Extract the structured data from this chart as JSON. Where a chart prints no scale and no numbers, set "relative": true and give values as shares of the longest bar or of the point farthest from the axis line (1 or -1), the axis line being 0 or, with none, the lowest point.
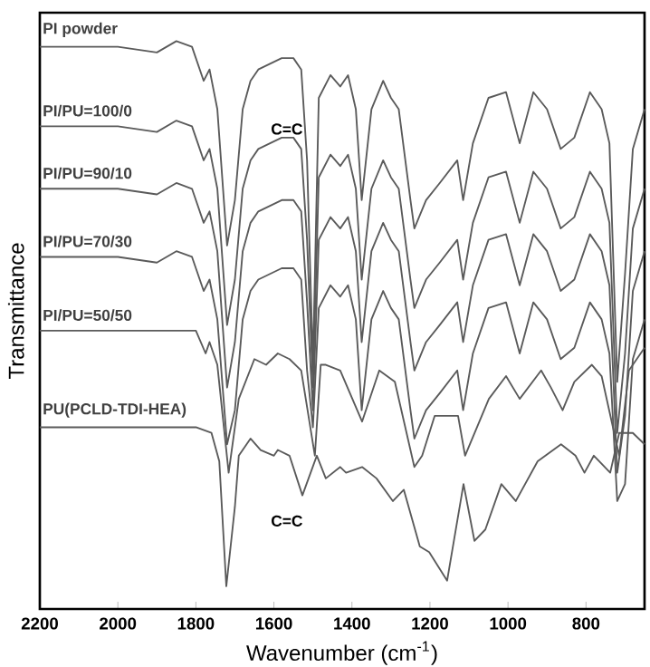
{
  "chart_data": {
    "type": "line",
    "relative": true,
    "xlabel": "Wavenumber (cm$^{-1}$)",
    "ylabel": "Transmittance",
    "xlim": [
      2200,
      650
    ],
    "xticks": [
      2200,
      2000,
      1800,
      1600,
      1400,
      1200,
      1000,
      800
    ],
    "grid": false,
    "marker": "none",
    "line_style": "solid",
    "x": [
      2200,
      2100,
      2000,
      1900,
      1850,
      1810,
      1795,
      1780,
      1765,
      1745,
      1720,
      1700,
      1680,
      1660,
      1640,
      1610,
      1580,
      1550,
      1530,
      1515,
      1500,
      1485,
      1455,
      1430,
      1410,
      1390,
      1375,
      1350,
      1320,
      1300,
      1280,
      1250,
      1240,
      1210,
      1175,
      1130,
      1115,
      1090,
      1050,
      1005,
      970,
      935,
      900,
      865,
      830,
      790,
      760,
      740,
      720,
      700,
      680,
      650
    ],
    "series": [
      {
        "name": "PI powder",
        "color": "#5a5a5a",
        "values": [
          0.99,
          0.99,
          0.99,
          0.98,
          1.0,
          0.99,
          0.96,
          0.93,
          0.95,
          0.88,
          0.64,
          0.72,
          0.88,
          0.93,
          0.95,
          0.96,
          0.97,
          0.97,
          0.95,
          0.79,
          0.43,
          0.9,
          0.94,
          0.92,
          0.94,
          0.88,
          0.72,
          0.88,
          0.93,
          0.9,
          0.88,
          0.72,
          0.67,
          0.72,
          0.75,
          0.79,
          0.72,
          0.82,
          0.9,
          0.91,
          0.82,
          0.91,
          0.88,
          0.81,
          0.83,
          0.91,
          0.88,
          0.82,
          0.4,
          0.59,
          0.81,
          0.88
        ]
      },
      {
        "name": "PI/PU=100/0",
        "color": "#5a5a5a",
        "values": [
          0.85,
          0.85,
          0.85,
          0.84,
          0.86,
          0.85,
          0.82,
          0.79,
          0.81,
          0.74,
          0.5,
          0.58,
          0.74,
          0.79,
          0.81,
          0.82,
          0.83,
          0.83,
          0.81,
          0.65,
          0.39,
          0.76,
          0.8,
          0.78,
          0.8,
          0.74,
          0.58,
          0.74,
          0.79,
          0.76,
          0.74,
          0.58,
          0.53,
          0.58,
          0.61,
          0.65,
          0.58,
          0.68,
          0.76,
          0.77,
          0.68,
          0.77,
          0.74,
          0.67,
          0.69,
          0.77,
          0.74,
          0.68,
          0.31,
          0.45,
          0.67,
          0.74
        ]
      },
      {
        "name": "PI/PU=90/10",
        "color": "#5a5a5a",
        "values": [
          0.74,
          0.74,
          0.74,
          0.73,
          0.75,
          0.74,
          0.71,
          0.68,
          0.7,
          0.63,
          0.39,
          0.47,
          0.63,
          0.68,
          0.7,
          0.71,
          0.72,
          0.72,
          0.7,
          0.54,
          0.35,
          0.65,
          0.69,
          0.67,
          0.69,
          0.63,
          0.47,
          0.63,
          0.68,
          0.65,
          0.63,
          0.47,
          0.42,
          0.47,
          0.5,
          0.54,
          0.47,
          0.57,
          0.65,
          0.66,
          0.57,
          0.66,
          0.63,
          0.56,
          0.58,
          0.66,
          0.63,
          0.57,
          0.24,
          0.34,
          0.56,
          0.63
        ]
      },
      {
        "name": "PI/PU=70/30",
        "color": "#5a5a5a",
        "values": [
          0.62,
          0.62,
          0.62,
          0.61,
          0.63,
          0.62,
          0.59,
          0.56,
          0.58,
          0.51,
          0.29,
          0.35,
          0.51,
          0.56,
          0.58,
          0.59,
          0.6,
          0.6,
          0.58,
          0.42,
          0.32,
          0.53,
          0.57,
          0.55,
          0.57,
          0.51,
          0.35,
          0.51,
          0.56,
          0.53,
          0.51,
          0.35,
          0.3,
          0.35,
          0.38,
          0.42,
          0.35,
          0.45,
          0.53,
          0.54,
          0.45,
          0.54,
          0.51,
          0.44,
          0.46,
          0.54,
          0.51,
          0.45,
          0.19,
          0.22,
          0.44,
          0.51
        ]
      },
      {
        "name": "PI/PU=50/50",
        "color": "#5a5a5a",
        "x": [
          2200,
          2100,
          2000,
          1900,
          1800,
          1775,
          1765,
          1745,
          1716,
          1690,
          1650,
          1620,
          1590,
          1560,
          1530,
          1495,
          1480,
          1467,
          1430,
          1374,
          1330,
          1290,
          1240,
          1220,
          1188,
          1128,
          1110,
          1049,
          1005,
          970,
          915,
          890,
          860,
          830,
          785,
          760,
          715,
          690,
          650
        ],
        "values": [
          0.49,
          0.49,
          0.49,
          0.49,
          0.49,
          0.45,
          0.47,
          0.43,
          0.24,
          0.37,
          0.44,
          0.43,
          0.45,
          0.44,
          0.42,
          0.27,
          0.43,
          0.43,
          0.42,
          0.33,
          0.42,
          0.4,
          0.25,
          0.27,
          0.34,
          0.34,
          0.27,
          0.37,
          0.41,
          0.37,
          0.42,
          0.39,
          0.35,
          0.4,
          0.43,
          0.41,
          0.27,
          0.42,
          0.46
        ]
      },
      {
        "name": "PU(PCLD-TDI-HEA)",
        "color": "#5a5a5a",
        "x": [
          2200,
          2000,
          1800,
          1760,
          1740,
          1722,
          1700,
          1690,
          1660,
          1634,
          1600,
          1590,
          1560,
          1527,
          1490,
          1467,
          1430,
          1415,
          1374,
          1337,
          1295,
          1267,
          1226,
          1202,
          1156,
          1114,
          1086,
          1058,
          1017,
          980,
          924,
          864,
          827,
          804,
          780,
          738,
          715,
          680,
          650
        ],
        "values": [
          0.32,
          0.32,
          0.32,
          0.31,
          0.26,
          0.04,
          0.18,
          0.27,
          0.3,
          0.28,
          0.27,
          0.28,
          0.27,
          0.2,
          0.27,
          0.23,
          0.25,
          0.24,
          0.25,
          0.23,
          0.19,
          0.21,
          0.11,
          0.1,
          0.05,
          0.22,
          0.12,
          0.14,
          0.22,
          0.19,
          0.26,
          0.29,
          0.27,
          0.24,
          0.27,
          0.24,
          0.31,
          0.31,
          0.29
        ]
      }
    ],
    "annotations": [
      "C=C",
      "C=C"
    ]
  }
}
